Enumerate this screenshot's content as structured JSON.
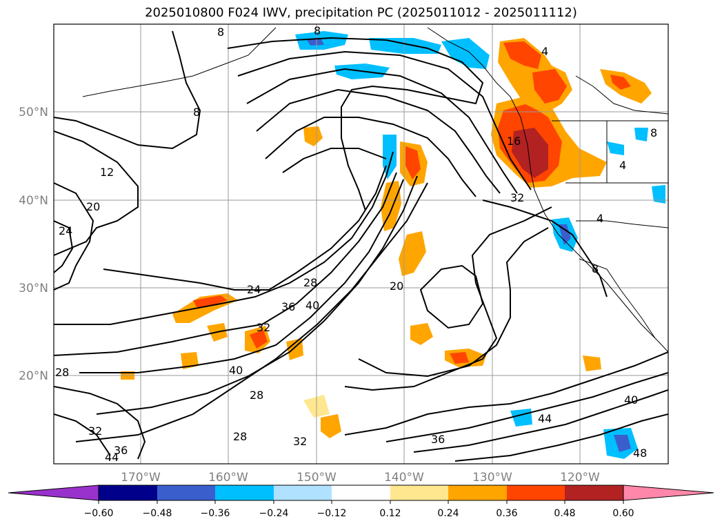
{
  "title": "2025010800 F024 IWV, precipitation PC (2025011012 - 2025011112)",
  "map": {
    "lat_labels": [
      "50°N",
      "40°N",
      "30°N",
      "20°N"
    ],
    "lon_labels": [
      "170°W",
      "160°W",
      "150°W",
      "140°W",
      "130°W",
      "120°W"
    ],
    "contour_labels": [
      "8",
      "8",
      "8",
      "12",
      "16",
      "20",
      "20",
      "24",
      "24",
      "28",
      "28",
      "28",
      "28",
      "32",
      "32",
      "32",
      "32",
      "36",
      "36",
      "36",
      "40",
      "40",
      "40",
      "44",
      "44",
      "48",
      "4",
      "4",
      "4",
      "8",
      "8"
    ]
  },
  "colorbar": {
    "ticks": [
      "−0.60",
      "−0.48",
      "−0.36",
      "−0.24",
      "−0.12",
      "0.12",
      "0.24",
      "0.36",
      "0.48",
      "0.60"
    ],
    "colors": {
      "under": "#9932cc",
      "bins": [
        "#00008b",
        "#3a5fcd",
        "#00bfff",
        "#b0e2ff",
        "#ffffff",
        "#ffe78f",
        "#ffa500",
        "#ff4500",
        "#b22222"
      ],
      "over": "#ff88aa"
    }
  }
}
